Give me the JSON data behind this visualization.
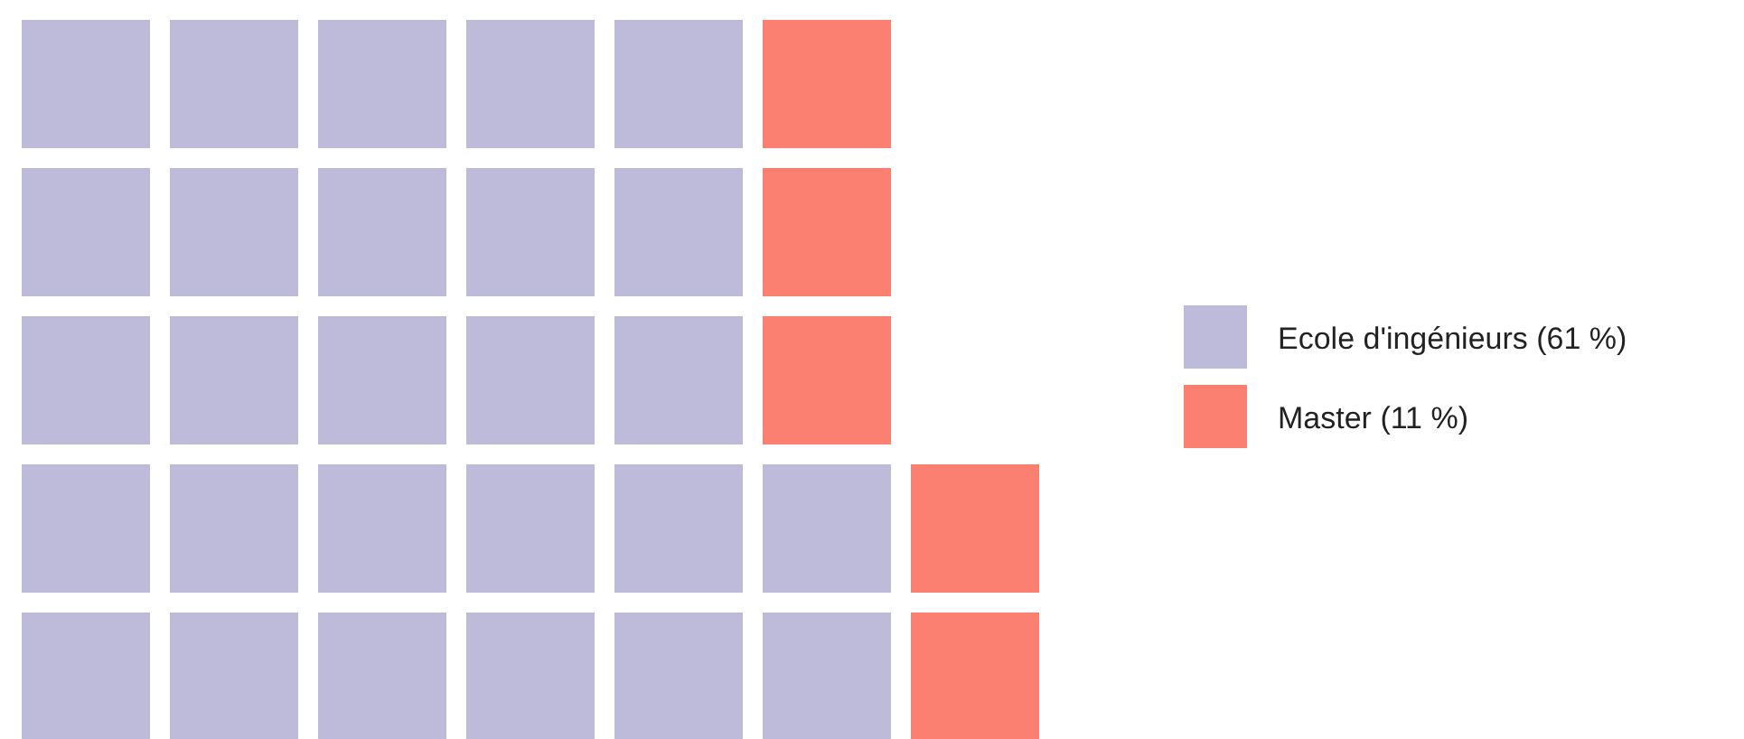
{
  "chart_data": {
    "type": "other",
    "categories": [
      "Ecole d'ingénieurs",
      "Master"
    ],
    "values": [
      61,
      11
    ],
    "value_labels": [
      "(61 %)",
      "(11 %)"
    ],
    "colors": [
      "#bebada",
      "#fb8072"
    ]
  }
}
